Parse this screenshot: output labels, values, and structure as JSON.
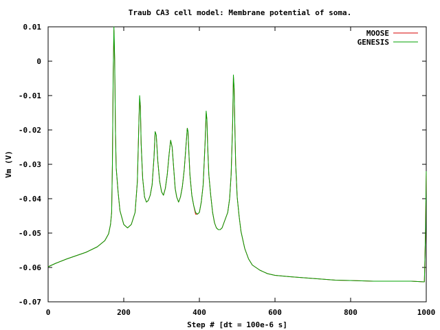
{
  "chart_data": {
    "type": "line",
    "title": "Traub CA3 cell model: Membrane potential of soma.",
    "xlabel": "Step # [dt = 100e-6 s]",
    "ylabel": "Vm (V)",
    "xlim": [
      0,
      1000
    ],
    "ylim": [
      -0.07,
      0.01
    ],
    "xticks": [
      0,
      200,
      400,
      600,
      800,
      1000
    ],
    "xtick_labels": [
      "0",
      "200",
      "400",
      "600",
      "800",
      "1000"
    ],
    "yticks": [
      0.01,
      0,
      -0.01,
      -0.02,
      -0.03,
      -0.04,
      -0.05,
      -0.06,
      -0.07
    ],
    "ytick_labels": [
      "0.01",
      "0",
      "-0.01",
      "-0.02",
      "-0.03",
      "-0.04",
      "-0.05",
      "-0.06",
      "-0.07"
    ],
    "grid": false,
    "legend": "top-right",
    "series": [
      {
        "name": "MOOSE",
        "color": "#d40000",
        "x": [
          0,
          20,
          50,
          100,
          130,
          150,
          160,
          165,
          168,
          170,
          172,
          174,
          176,
          178,
          180,
          185,
          190,
          200,
          210,
          220,
          230,
          236,
          240,
          242,
          244,
          246,
          250,
          255,
          260,
          265,
          270,
          275,
          280,
          283,
          286,
          290,
          295,
          300,
          305,
          310,
          315,
          320,
          324,
          328,
          332,
          336,
          340,
          345,
          350,
          355,
          360,
          365,
          368,
          370,
          372,
          375,
          380,
          385,
          390,
          395,
          400,
          405,
          410,
          415,
          418,
          420,
          422,
          425,
          430,
          435,
          440,
          445,
          450,
          455,
          460,
          465,
          470,
          475,
          480,
          484,
          488,
          490,
          492,
          494,
          496,
          500,
          505,
          510,
          520,
          530,
          540,
          560,
          580,
          600,
          640,
          700,
          760,
          800,
          860,
          900,
          960,
          995,
          998,
          1000
        ],
        "y": [
          -0.0598,
          -0.0588,
          -0.0575,
          -0.0556,
          -0.054,
          -0.0522,
          -0.0502,
          -0.0475,
          -0.044,
          -0.03,
          -0.005,
          0.009,
          0.0,
          -0.02,
          -0.031,
          -0.038,
          -0.0435,
          -0.0475,
          -0.0485,
          -0.0475,
          -0.044,
          -0.035,
          -0.018,
          -0.011,
          -0.013,
          -0.024,
          -0.034,
          -0.0395,
          -0.041,
          -0.0405,
          -0.039,
          -0.036,
          -0.028,
          -0.0205,
          -0.0215,
          -0.029,
          -0.035,
          -0.038,
          -0.039,
          -0.037,
          -0.033,
          -0.027,
          -0.023,
          -0.025,
          -0.031,
          -0.037,
          -0.0395,
          -0.041,
          -0.0395,
          -0.0365,
          -0.0315,
          -0.024,
          -0.0195,
          -0.0205,
          -0.026,
          -0.033,
          -0.039,
          -0.042,
          -0.0445,
          -0.0445,
          -0.044,
          -0.041,
          -0.036,
          -0.024,
          -0.015,
          -0.017,
          -0.025,
          -0.033,
          -0.039,
          -0.044,
          -0.047,
          -0.0485,
          -0.049,
          -0.049,
          -0.0485,
          -0.047,
          -0.0455,
          -0.044,
          -0.04,
          -0.033,
          -0.018,
          -0.0045,
          -0.008,
          -0.02,
          -0.03,
          -0.0395,
          -0.045,
          -0.0495,
          -0.0545,
          -0.0575,
          -0.0593,
          -0.0608,
          -0.0618,
          -0.0623,
          -0.0627,
          -0.0632,
          -0.0637,
          -0.0638,
          -0.064,
          -0.064,
          -0.064,
          -0.0642,
          -0.05,
          -0.032
        ]
      },
      {
        "name": "GENESIS",
        "color": "#00a000",
        "x": [
          0,
          20,
          50,
          100,
          130,
          150,
          160,
          165,
          168,
          170,
          172,
          174,
          176,
          178,
          180,
          185,
          190,
          200,
          210,
          220,
          230,
          236,
          240,
          242,
          244,
          246,
          250,
          255,
          260,
          265,
          270,
          275,
          280,
          283,
          286,
          290,
          295,
          300,
          305,
          310,
          315,
          320,
          324,
          328,
          332,
          336,
          340,
          345,
          350,
          355,
          360,
          365,
          368,
          370,
          372,
          375,
          380,
          385,
          390,
          395,
          400,
          405,
          410,
          415,
          418,
          420,
          422,
          425,
          430,
          435,
          440,
          445,
          450,
          455,
          460,
          465,
          470,
          475,
          480,
          484,
          488,
          490,
          492,
          494,
          496,
          500,
          505,
          510,
          520,
          530,
          540,
          560,
          580,
          600,
          640,
          700,
          760,
          800,
          860,
          900,
          960,
          995,
          998,
          1000
        ],
        "y": [
          -0.0598,
          -0.0588,
          -0.0575,
          -0.0556,
          -0.054,
          -0.0522,
          -0.0502,
          -0.0475,
          -0.044,
          -0.03,
          -0.005,
          0.01,
          0.001,
          -0.02,
          -0.031,
          -0.038,
          -0.0435,
          -0.0475,
          -0.0485,
          -0.0475,
          -0.044,
          -0.035,
          -0.018,
          -0.01,
          -0.013,
          -0.024,
          -0.034,
          -0.0395,
          -0.041,
          -0.0405,
          -0.039,
          -0.036,
          -0.028,
          -0.0205,
          -0.0215,
          -0.029,
          -0.035,
          -0.038,
          -0.039,
          -0.037,
          -0.033,
          -0.027,
          -0.023,
          -0.025,
          -0.031,
          -0.037,
          -0.0395,
          -0.041,
          -0.0395,
          -0.0365,
          -0.0315,
          -0.024,
          -0.0195,
          -0.0205,
          -0.026,
          -0.033,
          -0.039,
          -0.042,
          -0.044,
          -0.0445,
          -0.044,
          -0.041,
          -0.036,
          -0.024,
          -0.0145,
          -0.017,
          -0.025,
          -0.033,
          -0.039,
          -0.044,
          -0.047,
          -0.0485,
          -0.049,
          -0.049,
          -0.0485,
          -0.047,
          -0.0455,
          -0.044,
          -0.04,
          -0.033,
          -0.018,
          -0.004,
          -0.008,
          -0.02,
          -0.03,
          -0.0395,
          -0.045,
          -0.0495,
          -0.0545,
          -0.0575,
          -0.0593,
          -0.0608,
          -0.0618,
          -0.0623,
          -0.0627,
          -0.0632,
          -0.0637,
          -0.0638,
          -0.064,
          -0.064,
          -0.064,
          -0.0642,
          -0.05,
          -0.032
        ]
      }
    ]
  }
}
